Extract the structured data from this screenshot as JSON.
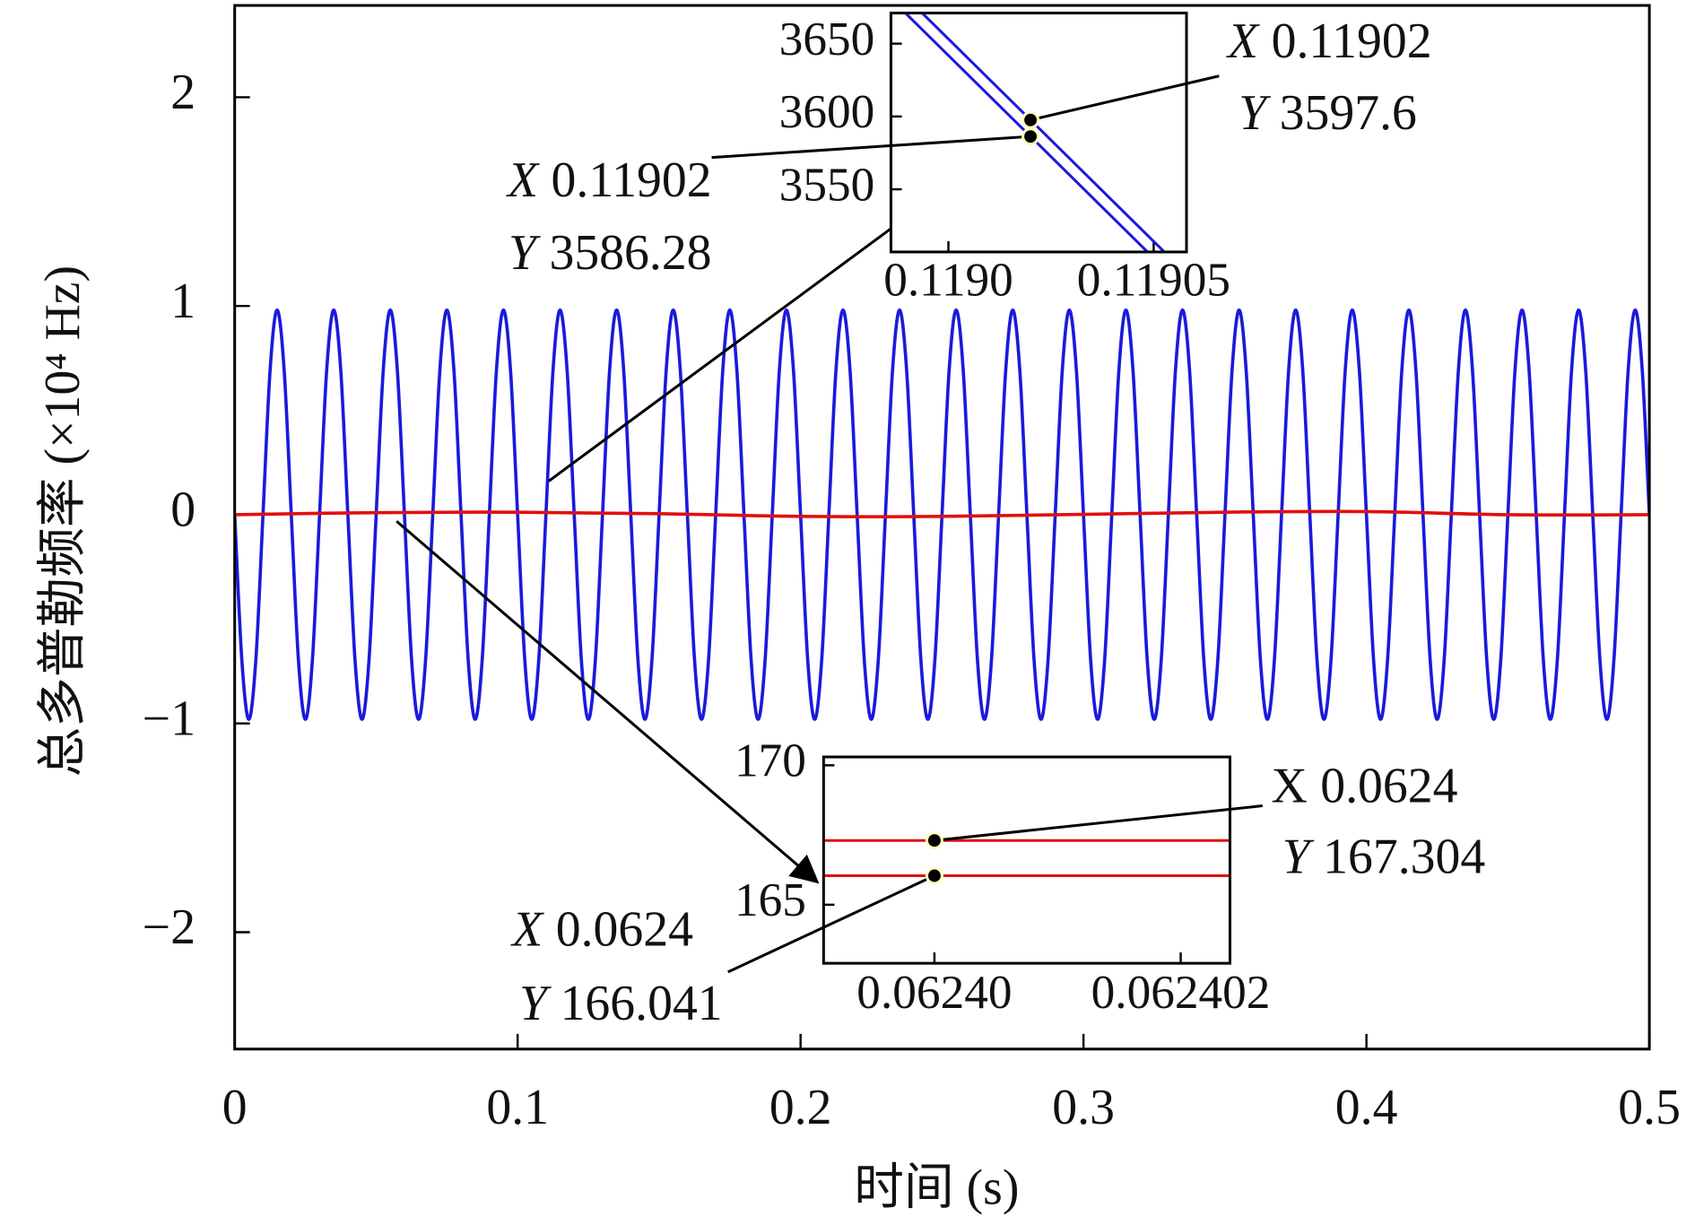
{
  "chart_data": {
    "type": "line",
    "x_label": "时间 (s)",
    "y_label": "总多普勒频率 (×10⁴ Hz)",
    "xlim": [
      0,
      0.5
    ],
    "ylim": [
      -2.56,
      2.44
    ],
    "xticks": [
      0,
      0.1,
      0.2,
      0.3,
      0.4,
      0.5
    ],
    "yticks": [
      {
        "value": -2,
        "label": "−2"
      },
      {
        "value": -1,
        "label": "−1"
      },
      0,
      1,
      2
    ],
    "x_name": "X",
    "y_name": "Y",
    "series": [
      {
        "color": "#1a1adc",
        "x": [
          0,
          0.0025,
          0.005,
          0.0075,
          0.01,
          0.0125,
          0.015,
          0.0175,
          0.02,
          0.0225,
          0.025,
          0.0275,
          0.03,
          0.0325,
          0.035,
          0.0375,
          0.04,
          0.0425,
          0.045,
          0.0475,
          0.05,
          0.0525,
          0.055,
          0.0575,
          0.06,
          0.0625,
          0.065,
          0.0675,
          0.07,
          0.0725,
          0.075,
          0.0775,
          0.08,
          0.0825,
          0.085,
          0.0875,
          0.09,
          0.0925,
          0.095,
          0.0975,
          0.1,
          0.1025,
          0.105,
          0.1075,
          0.11,
          0.1125,
          0.115,
          0.1175,
          0.12,
          0.1225,
          0.125,
          0.1275,
          0.13,
          0.1325,
          0.135,
          0.1375,
          0.14,
          0.1425,
          0.145,
          0.1475,
          0.15,
          0.1525,
          0.155,
          0.1575,
          0.16,
          0.1625,
          0.165,
          0.1675,
          0.17,
          0.1725,
          0.175,
          0.1775,
          0.18,
          0.1825,
          0.185,
          0.1875,
          0.19,
          0.1925,
          0.195,
          0.1975,
          0.2,
          0.2025,
          0.205,
          0.2075,
          0.21,
          0.2125,
          0.215,
          0.2175,
          0.22,
          0.2225,
          0.225,
          0.2275,
          0.23,
          0.2325,
          0.235,
          0.2375,
          0.24,
          0.2425,
          0.245,
          0.2475,
          0.25,
          0.2525,
          0.255,
          0.2575,
          0.26,
          0.2625,
          0.265,
          0.2675,
          0.27,
          0.2725,
          0.275,
          0.2775,
          0.28,
          0.2825,
          0.285,
          0.2875,
          0.29,
          0.2925,
          0.295,
          0.2975,
          0.3,
          0.3025,
          0.305,
          0.3075,
          0.31,
          0.3125,
          0.315,
          0.3175,
          0.32,
          0.3225,
          0.325,
          0.3275,
          0.33,
          0.3325,
          0.335,
          0.3375,
          0.34,
          0.3425,
          0.345,
          0.3475,
          0.35,
          0.3525,
          0.355,
          0.3575,
          0.36,
          0.3625,
          0.365,
          0.3675,
          0.37,
          0.3725,
          0.375,
          0.3775,
          0.38,
          0.3825,
          0.385,
          0.3875,
          0.39,
          0.3925,
          0.395,
          0.3975,
          0.4,
          0.4025,
          0.405,
          0.4075,
          0.41,
          0.4125,
          0.415,
          0.4175,
          0.42,
          0.4225,
          0.425,
          0.4275,
          0.43,
          0.4325,
          0.435,
          0.4375,
          0.44,
          0.4425,
          0.445,
          0.4475,
          0.45,
          0.4525,
          0.455,
          0.4575,
          0.46,
          0.4625,
          0.465,
          0.4675,
          0.47,
          0.4725,
          0.475,
          0.4775,
          0.48,
          0.4825,
          0.485,
          0.4875,
          0.49,
          0.4925,
          0.495,
          0.4975,
          0.5
        ],
        "values": [
          0,
          -0.69,
          -0.98,
          -0.69,
          0,
          0.69,
          0.98,
          0.69,
          0,
          -0.69,
          -0.98,
          -0.69,
          0,
          0.69,
          0.98,
          0.69,
          0,
          -0.69,
          -0.98,
          -0.69,
          0,
          0.69,
          0.98,
          0.69,
          0,
          -0.69,
          -0.98,
          -0.69,
          0,
          0.69,
          0.98,
          0.69,
          0,
          -0.69,
          -0.98,
          -0.69,
          0,
          0.69,
          0.98,
          0.69,
          0,
          -0.69,
          -0.98,
          -0.69,
          0,
          0.69,
          0.98,
          0.69,
          0,
          -0.69,
          -0.98,
          -0.69,
          0,
          0.69,
          0.98,
          0.69,
          0,
          -0.69,
          -0.98,
          -0.69,
          0,
          0.69,
          0.98,
          0.69,
          0,
          -0.69,
          -0.98,
          -0.69,
          0,
          0.69,
          0.98,
          0.69,
          0,
          -0.69,
          -0.98,
          -0.69,
          0,
          0.69,
          0.98,
          0.69,
          0,
          -0.69,
          -0.98,
          -0.69,
          0,
          0.69,
          0.98,
          0.69,
          0,
          -0.69,
          -0.98,
          -0.69,
          0,
          0.69,
          0.98,
          0.69,
          0,
          -0.69,
          -0.98,
          -0.69,
          0,
          0.69,
          0.98,
          0.69,
          0,
          -0.69,
          -0.98,
          -0.69,
          0,
          0.69,
          0.98,
          0.69,
          0,
          -0.69,
          -0.98,
          -0.69,
          0,
          0.69,
          0.98,
          0.69,
          0,
          -0.69,
          -0.98,
          -0.69,
          0,
          0.69,
          0.98,
          0.69,
          0,
          -0.69,
          -0.98,
          -0.69,
          0,
          0.69,
          0.98,
          0.69,
          0,
          -0.69,
          -0.98,
          -0.69,
          0,
          0.69,
          0.98,
          0.69,
          0,
          -0.69,
          -0.98,
          -0.69,
          0,
          0.69,
          0.98,
          0.69,
          0,
          -0.69,
          -0.98,
          -0.69,
          0,
          0.69,
          0.98,
          0.69,
          0,
          -0.69,
          -0.98,
          -0.69,
          0,
          0.69,
          0.98,
          0.69,
          0,
          -0.69,
          -0.98,
          -0.69,
          0,
          0.69,
          0.98,
          0.69,
          0,
          -0.69,
          -0.98,
          -0.69,
          0,
          0.69,
          0.98,
          0.69,
          0,
          -0.69,
          -0.98,
          -0.69,
          0,
          0.69,
          0.98,
          0.69,
          0,
          -0.69,
          -0.98,
          -0.69,
          0,
          0.69,
          0.98,
          0.69,
          0
        ]
      },
      {
        "color": "#e01010",
        "x": [
          0,
          0.05,
          0.1,
          0.15,
          0.2,
          0.25,
          0.3,
          0.35,
          0.4,
          0.45,
          0.5
        ],
        "values": [
          0,
          0.01,
          0.012,
          0.005,
          -0.008,
          -0.008,
          0.002,
          0.012,
          0.015,
          0,
          0
        ]
      }
    ],
    "insets": [
      {
        "type": "line",
        "xlim": [
          0.118986,
          0.119058
        ],
        "ylim": [
          3507,
          3671
        ],
        "xticks": [
          {
            "value": 0.119,
            "label": "0.1190"
          },
          0.11905
        ],
        "yticks": [
          3550,
          3600,
          3650
        ],
        "series": [
          {
            "color": "#1a1adc",
            "x": [
              0.118985,
              0.119058
            ],
            "values": [
              3694.9,
              3492
            ]
          },
          {
            "color": "#1a1adc",
            "x": [
              0.118985,
              0.119058
            ],
            "values": [
              3683.6,
              3480.6
            ]
          }
        ],
        "markers": [
          {
            "x": 0.11902,
            "y": 3597.6
          },
          {
            "x": 0.11902,
            "y": 3586.28
          }
        ]
      },
      {
        "type": "line",
        "xlim": [
          0.0623991,
          0.0624024
        ],
        "ylim": [
          162.9,
          170.3
        ],
        "xticks": [
          {
            "value": 0.0624,
            "label": "0.06240"
          },
          0.062402
        ],
        "yticks": [
          165,
          170
        ],
        "series": [
          {
            "color": "#e01010",
            "x": [
              0.0623991,
              0.0624024
            ],
            "values": [
              167.304,
              167.304
            ]
          },
          {
            "color": "#e01010",
            "x": [
              0.0623991,
              0.0624024
            ],
            "values": [
              166.041,
              166.041
            ]
          }
        ],
        "markers": [
          {
            "x": 0.0624,
            "y": 167.304
          },
          {
            "x": 0.0624,
            "y": 166.041
          }
        ]
      }
    ]
  }
}
